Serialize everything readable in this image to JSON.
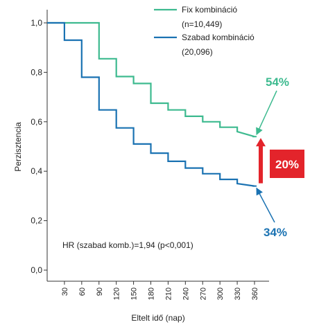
{
  "chart_data": {
    "type": "line",
    "xlabel": "Eltelt idő (nap)",
    "ylabel": "Perzisztencia",
    "xlim": [
      0,
      375
    ],
    "ylim": [
      0,
      1.0
    ],
    "x_ticks": [
      30,
      60,
      90,
      120,
      150,
      180,
      210,
      240,
      270,
      300,
      330,
      360
    ],
    "y_ticks": [
      {
        "value": 0.0,
        "label": "0,0"
      },
      {
        "value": 0.2,
        "label": "0,2"
      },
      {
        "value": 0.4,
        "label": "0,4"
      },
      {
        "value": 0.6,
        "label": "0,6"
      },
      {
        "value": 0.8,
        "label": "0,8"
      },
      {
        "value": 1.0,
        "label": "1,0"
      }
    ],
    "series": [
      {
        "name": "Fix kombináció",
        "legend_lines": [
          "Fix kombináció",
          "(n=10,449)"
        ],
        "color": "#3dba8f",
        "step": true,
        "x": [
          0,
          53,
          53,
          90,
          90,
          120,
          120,
          150,
          150,
          180,
          180,
          210,
          210,
          240,
          240,
          270,
          270,
          300,
          300,
          330,
          330,
          360
        ],
        "y": [
          1.0,
          1.0,
          1.0,
          1.0,
          0.855,
          0.855,
          0.783,
          0.783,
          0.755,
          0.755,
          0.675,
          0.675,
          0.648,
          0.648,
          0.622,
          0.622,
          0.6,
          0.6,
          0.578,
          0.578,
          0.56,
          0.54
        ]
      },
      {
        "name": "Szabad kombináció",
        "legend_lines": [
          "Szabad kombináció",
          "(20,096)"
        ],
        "color": "#1a72b2",
        "step": true,
        "x": [
          0,
          30,
          30,
          60,
          60,
          90,
          90,
          120,
          120,
          150,
          150,
          180,
          180,
          210,
          210,
          240,
          240,
          270,
          270,
          300,
          300,
          330,
          330,
          360
        ],
        "y": [
          1.0,
          1.0,
          0.93,
          0.93,
          0.78,
          0.78,
          0.648,
          0.648,
          0.575,
          0.575,
          0.51,
          0.51,
          0.473,
          0.473,
          0.44,
          0.44,
          0.413,
          0.413,
          0.39,
          0.39,
          0.367,
          0.367,
          0.35,
          0.34
        ]
      }
    ],
    "annotations": [
      {
        "text": "54%",
        "color": "#3dba8f"
      },
      {
        "text": "34%",
        "color": "#1a72b2"
      },
      {
        "text": "20%",
        "color": "#e3242b"
      },
      {
        "text": "HR (szabad komb.)=1,94 (p<0,001)",
        "color": "#222222"
      }
    ]
  },
  "colors": {
    "axis": "#333333",
    "text": "#222222",
    "difference_arrow": "#e3242b"
  }
}
